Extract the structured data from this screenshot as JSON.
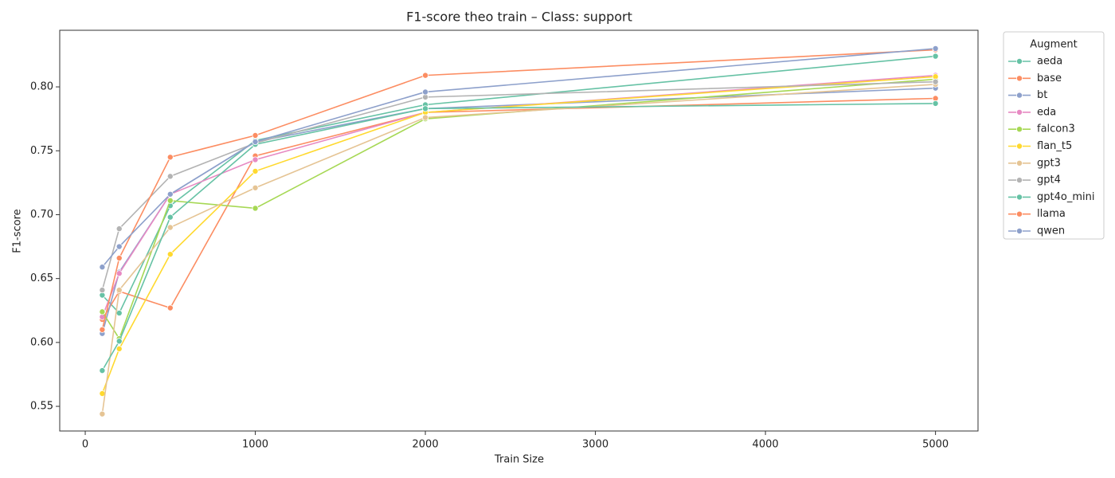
{
  "chart_data": {
    "type": "line",
    "title": "F1-score theo train – Class: support",
    "x_label": "Train Size",
    "y_label": "F1-score",
    "legend_title": "Augment",
    "legend_position": "outside right",
    "x": [
      100,
      200,
      500,
      1000,
      2000,
      5000
    ],
    "xlim": [
      -150,
      5250
    ],
    "xticks": [
      0,
      1000,
      2000,
      3000,
      4000,
      5000
    ],
    "ylim": [
      0.5307,
      0.8443
    ],
    "yticks": [
      0.55,
      {
        "value": 0.6,
        "label": "0.60"
      },
      0.65,
      {
        "value": 0.7,
        "label": "0.70"
      },
      0.75,
      {
        "value": 0.8,
        "label": "0.80"
      }
    ],
    "series": [
      {
        "name": "aeda",
        "color": "#66c2a5",
        "values": [
          0.637,
          0.623,
          0.707,
          0.758,
          0.786,
          0.824
        ]
      },
      {
        "name": "base",
        "color": "#fc8d62",
        "values": [
          0.618,
          0.64,
          0.627,
          0.746,
          0.78,
          0.791
        ]
      },
      {
        "name": "bt",
        "color": "#8da0cb",
        "values": [
          0.607,
          0.655,
          0.716,
          0.757,
          0.783,
          0.799
        ]
      },
      {
        "name": "eda",
        "color": "#e78ac3",
        "values": [
          0.62,
          0.654,
          0.716,
          0.743,
          0.78,
          0.809
        ]
      },
      {
        "name": "falcon3",
        "color": "#a6d854",
        "values": [
          0.624,
          0.603,
          0.711,
          0.705,
          0.775,
          0.806
        ]
      },
      {
        "name": "flan_t5",
        "color": "#ffd92f",
        "values": [
          0.56,
          0.595,
          0.669,
          0.734,
          0.78,
          0.808
        ]
      },
      {
        "name": "gpt3",
        "color": "#e5c494",
        "values": [
          0.544,
          0.641,
          0.69,
          0.721,
          0.776,
          0.802
        ]
      },
      {
        "name": "gpt4",
        "color": "#b3b3b3",
        "values": [
          0.641,
          0.689,
          0.73,
          0.756,
          0.792,
          0.804
        ]
      },
      {
        "name": "gpt4o_mini",
        "color": "#66c2a5",
        "values": [
          0.578,
          0.601,
          0.698,
          0.755,
          0.783,
          0.787
        ]
      },
      {
        "name": "llama",
        "color": "#fc8d62",
        "values": [
          0.61,
          0.666,
          0.745,
          0.762,
          0.809,
          0.829
        ]
      },
      {
        "name": "qwen",
        "color": "#8da0cb",
        "values": [
          0.659,
          0.675,
          0.716,
          0.757,
          0.796,
          0.83
        ]
      }
    ]
  }
}
